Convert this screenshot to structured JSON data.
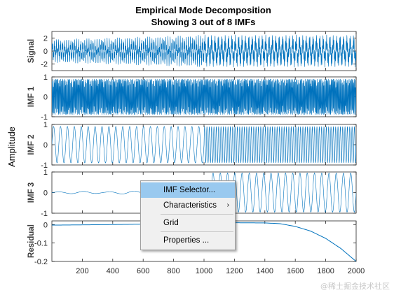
{
  "chart_data": {
    "type": "line",
    "title": "Empirical Mode Decomposition",
    "subtitle": "Showing 3 out of 8 IMFs",
    "ylabel": "Amplitude",
    "xlim": [
      0,
      2000
    ],
    "x_ticks": [
      200,
      400,
      600,
      800,
      1000,
      1200,
      1400,
      1600,
      1800,
      2000
    ],
    "line_color": "#0072bd",
    "grid": false,
    "subplots": [
      {
        "name": "Signal",
        "ylim": [
          -3,
          3
        ],
        "yticks": [
          2,
          0,
          -2
        ],
        "description_points": {
          "x": [
            0,
            1000,
            2000
          ],
          "amplitude": [
            1.8,
            2.5,
            2.5
          ]
        }
      },
      {
        "name": "IMF 1",
        "ylim": [
          -1,
          1
        ],
        "yticks": [
          1,
          0,
          -1
        ],
        "description_points": {
          "x": [
            0,
            1000,
            2000
          ],
          "amplitude": [
            0.9,
            0.9,
            0.9
          ]
        }
      },
      {
        "name": "IMF 2",
        "ylim": [
          -1,
          1
        ],
        "yticks": [
          1,
          0,
          -1
        ],
        "description_points": {
          "x": [
            0,
            1000,
            2000
          ],
          "amplitude": [
            0.9,
            0.9,
            0.9
          ]
        }
      },
      {
        "name": "IMF 3",
        "ylim": [
          -1,
          1
        ],
        "yticks": [
          1,
          0,
          -1
        ],
        "description_points": {
          "x": [
            0,
            1000,
            1050,
            2000
          ],
          "amplitude": [
            0.05,
            0.1,
            0.95,
            0.95
          ]
        }
      },
      {
        "name": "Residual",
        "ylim": [
          -0.2,
          0.02
        ],
        "yticks": [
          0,
          -0.1,
          -0.2
        ],
        "x": [
          0,
          400,
          800,
          1000,
          1200,
          1400,
          1500,
          1600,
          1700,
          1800,
          1900,
          2000
        ],
        "values": [
          -0.003,
          0.0,
          0.005,
          0.008,
          0.01,
          0.009,
          0.005,
          -0.01,
          -0.035,
          -0.075,
          -0.13,
          -0.2
        ]
      }
    ]
  },
  "context_menu": {
    "items": [
      {
        "label": "IMF Selector...",
        "selected": true,
        "submenu": false
      },
      {
        "label": "Characteristics",
        "selected": false,
        "submenu": true
      },
      {
        "label": "Grid",
        "selected": false,
        "submenu": false
      },
      {
        "label": "Properties ...",
        "selected": false,
        "submenu": false
      }
    ]
  },
  "watermark": "@稀土掘金技术社区"
}
